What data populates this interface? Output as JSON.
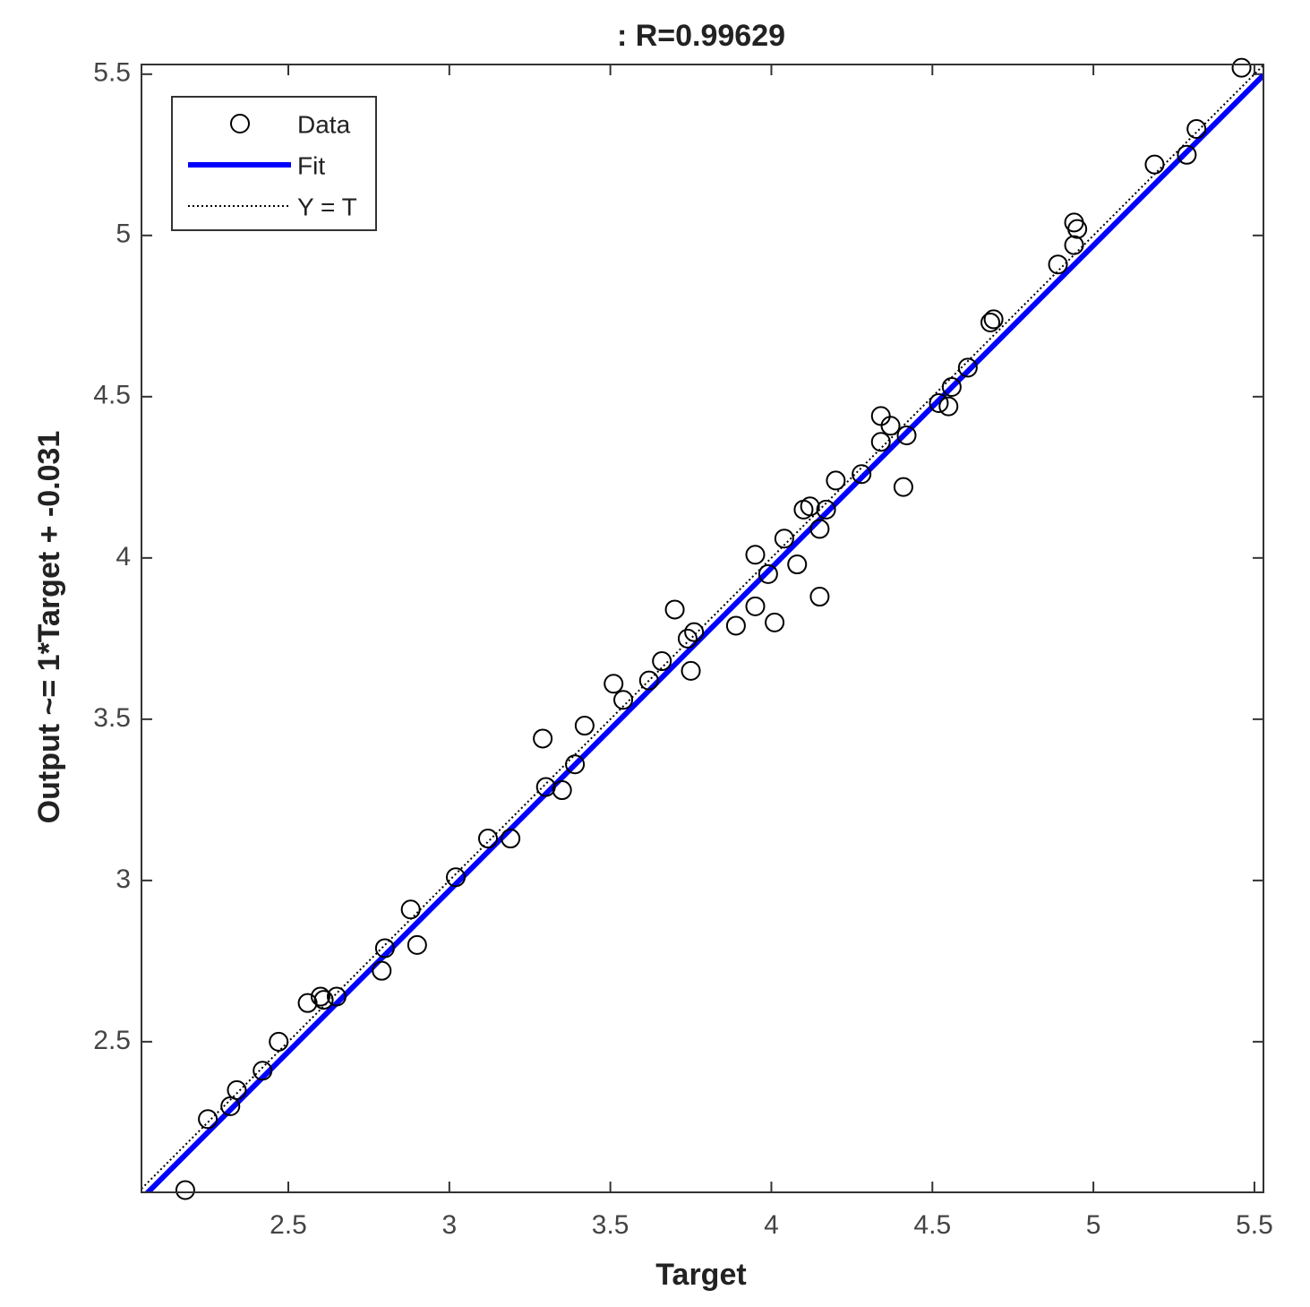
{
  "chart_data": {
    "type": "scatter",
    "title": ": R=0.99629",
    "x_label": "Target",
    "y_label": "Output ~= 1*Target + -0.031",
    "xlim": [
      2.044,
      5.528
    ],
    "ylim": [
      2.033,
      5.53
    ],
    "xticks": [
      2.5,
      3,
      3.5,
      4,
      4.5,
      5,
      5.5
    ],
    "yticks": [
      2.5,
      3,
      3.5,
      4,
      4.5,
      5,
      5.5
    ],
    "legend": "upper-left",
    "series": [
      {
        "name": "Data",
        "color": "#000000",
        "mode": "markers",
        "x": [
          2.18,
          2.25,
          2.32,
          2.34,
          2.42,
          2.47,
          2.56,
          2.6,
          2.61,
          2.65,
          2.79,
          2.8,
          2.88,
          2.9,
          3.02,
          3.12,
          3.19,
          3.29,
          3.3,
          3.35,
          3.39,
          3.42,
          3.51,
          3.54,
          3.62,
          3.66,
          3.7,
          3.74,
          3.76,
          3.75,
          3.89,
          3.95,
          3.95,
          3.99,
          4.01,
          4.04,
          4.08,
          4.1,
          4.12,
          4.15,
          4.15,
          4.17,
          4.2,
          4.28,
          4.34,
          4.34,
          4.37,
          4.42,
          4.41,
          4.52,
          4.55,
          4.56,
          4.61,
          4.68,
          4.69,
          4.89,
          4.94,
          4.94,
          4.95,
          5.19,
          5.29,
          5.32,
          5.46
        ],
        "values": [
          2.04,
          2.26,
          2.3,
          2.35,
          2.41,
          2.5,
          2.62,
          2.64,
          2.63,
          2.64,
          2.72,
          2.79,
          2.91,
          2.8,
          3.01,
          3.13,
          3.13,
          3.44,
          3.29,
          3.28,
          3.36,
          3.48,
          3.61,
          3.56,
          3.62,
          3.68,
          3.84,
          3.75,
          3.77,
          3.65,
          3.79,
          3.85,
          4.01,
          3.95,
          3.8,
          4.06,
          3.98,
          4.15,
          4.16,
          4.09,
          3.88,
          4.15,
          4.24,
          4.26,
          4.44,
          4.36,
          4.41,
          4.38,
          4.22,
          4.48,
          4.47,
          4.53,
          4.59,
          4.73,
          4.74,
          4.91,
          4.97,
          5.04,
          5.02,
          5.22,
          5.25,
          5.33,
          5.52
        ]
      },
      {
        "name": "Fit",
        "color": "#0000ff",
        "mode": "line",
        "x": [
          2.044,
          5.528
        ],
        "values": [
          2.013,
          5.497
        ]
      },
      {
        "name": "Y = T",
        "color": "#000000",
        "mode": "dotted",
        "x": [
          2.044,
          5.528
        ],
        "values": [
          2.044,
          5.528
        ]
      }
    ]
  }
}
